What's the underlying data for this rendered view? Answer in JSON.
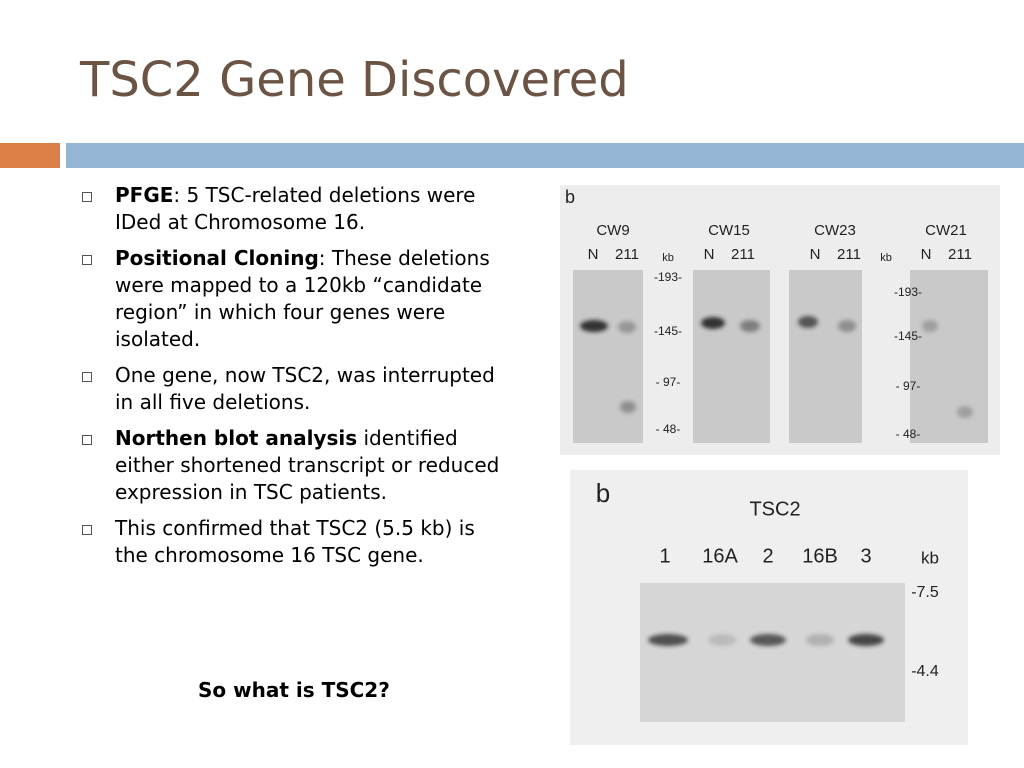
{
  "title": "TSC2 Gene Discovered",
  "bullets": [
    {
      "bold": "PFGE",
      "text": ": 5 TSC-related deletions were IDed at Chromosome 16."
    },
    {
      "bold": "Positional Cloning",
      "text": ": These deletions were mapped to a 120kb “candidate region” in which four genes were isolated."
    },
    {
      "text": "One gene, now TSC2, was interrupted in all five deletions."
    },
    {
      "bold": "Northen blot analysis",
      "text": " identified either shortened transcript or reduced expression in TSC patients."
    },
    {
      "text": "This confirmed that TSC2 (5.5 kb) is the chromosome 16 TSC gene."
    }
  ],
  "footer": "So what is TSC2?",
  "figure1": {
    "panel": "b",
    "lanes": [
      {
        "name": "CW9",
        "labels": [
          "N",
          "211"
        ]
      },
      {
        "name": "CW15",
        "labels": [
          "N",
          "211"
        ]
      },
      {
        "name": "CW23",
        "labels": [
          "N",
          "211"
        ]
      },
      {
        "name": "CW21",
        "labels": [
          "N",
          "211"
        ]
      }
    ],
    "unit": "kb",
    "markers": [
      "-193-",
      "-145-",
      "- 97-",
      "- 48-"
    ]
  },
  "figure2": {
    "panel": "b",
    "title": "TSC2",
    "lanes": [
      "1",
      "16A",
      "2",
      "16B",
      "3"
    ],
    "unit": "kb",
    "markers": [
      "-7.5",
      "-4.4"
    ]
  }
}
